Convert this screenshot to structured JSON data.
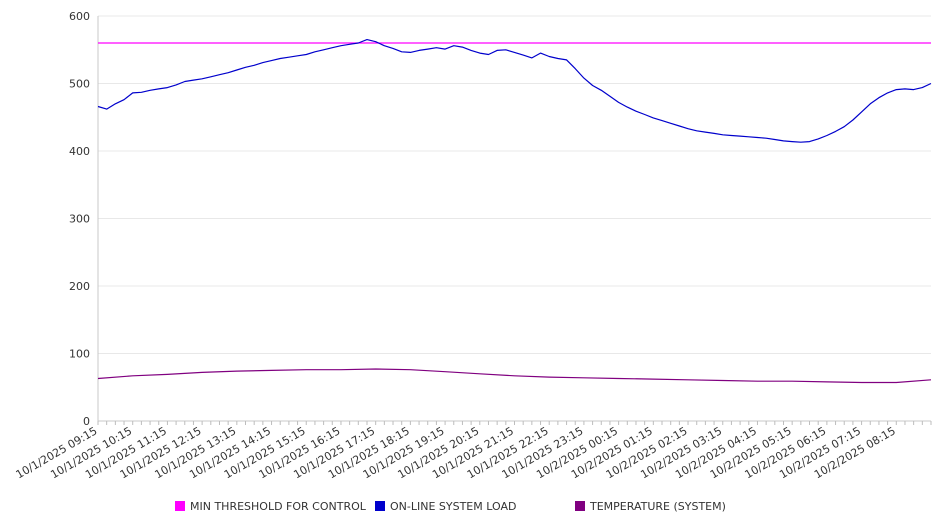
{
  "chart_data": {
    "type": "line",
    "ylim": [
      0,
      600
    ],
    "yticks": [
      0,
      100,
      200,
      300,
      400,
      500,
      600
    ],
    "grid": true,
    "legend_position": "bottom",
    "x_labels": [
      "10/1/2025 09:15",
      "10/1/2025 10:15",
      "10/1/2025 11:15",
      "10/1/2025 12:15",
      "10/1/2025 13:15",
      "10/1/2025 14:15",
      "10/1/2025 15:15",
      "10/1/2025 16:15",
      "10/1/2025 17:15",
      "10/1/2025 18:15",
      "10/1/2025 19:15",
      "10/1/2025 20:15",
      "10/1/2025 21:15",
      "10/1/2025 22:15",
      "10/1/2025 23:15",
      "10/2/2025 00:15",
      "10/2/2025 01:15",
      "10/2/2025 02:15",
      "10/2/2025 03:15",
      "10/2/2025 04:15",
      "10/2/2025 05:15",
      "10/2/2025 06:15",
      "10/2/2025 07:15",
      "10/2/2025 08:15"
    ],
    "x_start": "10/1/2025 09:15",
    "x_end": "10/2/2025 09:15",
    "series": [
      {
        "name": "MIN THRESHOLD FOR CONTROL",
        "color": "#ff00ff",
        "times": [
          "10/1/2025 09:15",
          "10/2/2025 09:15"
        ],
        "values": [
          560,
          560
        ]
      },
      {
        "name": "ON-LINE SYSTEM LOAD",
        "color": "#0000cc",
        "times": [
          "10/1/2025 09:15",
          "10/1/2025 09:30",
          "10/1/2025 09:45",
          "10/1/2025 10:00",
          "10/1/2025 10:15",
          "10/1/2025 10:30",
          "10/1/2025 10:45",
          "10/1/2025 11:00",
          "10/1/2025 11:15",
          "10/1/2025 11:30",
          "10/1/2025 11:45",
          "10/1/2025 12:00",
          "10/1/2025 12:15",
          "10/1/2025 12:30",
          "10/1/2025 12:45",
          "10/1/2025 13:00",
          "10/1/2025 13:15",
          "10/1/2025 13:30",
          "10/1/2025 13:45",
          "10/1/2025 14:00",
          "10/1/2025 14:15",
          "10/1/2025 14:30",
          "10/1/2025 14:45",
          "10/1/2025 15:00",
          "10/1/2025 15:15",
          "10/1/2025 15:30",
          "10/1/2025 15:45",
          "10/1/2025 16:00",
          "10/1/2025 16:15",
          "10/1/2025 16:30",
          "10/1/2025 16:45",
          "10/1/2025 17:00",
          "10/1/2025 17:15",
          "10/1/2025 17:30",
          "10/1/2025 17:45",
          "10/1/2025 18:00",
          "10/1/2025 18:15",
          "10/1/2025 18:30",
          "10/1/2025 18:45",
          "10/1/2025 19:00",
          "10/1/2025 19:15",
          "10/1/2025 19:30",
          "10/1/2025 19:45",
          "10/1/2025 20:00",
          "10/1/2025 20:15",
          "10/1/2025 20:30",
          "10/1/2025 20:45",
          "10/1/2025 21:00",
          "10/1/2025 21:15",
          "10/1/2025 21:30",
          "10/1/2025 21:45",
          "10/1/2025 22:00",
          "10/1/2025 22:15",
          "10/1/2025 22:30",
          "10/1/2025 22:45",
          "10/1/2025 23:00",
          "10/1/2025 23:15",
          "10/1/2025 23:30",
          "10/1/2025 23:45",
          "10/2/2025 00:00",
          "10/2/2025 00:15",
          "10/2/2025 00:30",
          "10/2/2025 00:45",
          "10/2/2025 01:00",
          "10/2/2025 01:15",
          "10/2/2025 01:30",
          "10/2/2025 01:45",
          "10/2/2025 02:00",
          "10/2/2025 02:15",
          "10/2/2025 02:30",
          "10/2/2025 02:45",
          "10/2/2025 03:00",
          "10/2/2025 03:15",
          "10/2/2025 03:30",
          "10/2/2025 03:45",
          "10/2/2025 04:00",
          "10/2/2025 04:15",
          "10/2/2025 04:30",
          "10/2/2025 04:45",
          "10/2/2025 05:00",
          "10/2/2025 05:15",
          "10/2/2025 05:30",
          "10/2/2025 05:45",
          "10/2/2025 06:00",
          "10/2/2025 06:15",
          "10/2/2025 06:30",
          "10/2/2025 06:45",
          "10/2/2025 07:00",
          "10/2/2025 07:15",
          "10/2/2025 07:30",
          "10/2/2025 07:45",
          "10/2/2025 08:00",
          "10/2/2025 08:15",
          "10/2/2025 08:30",
          "10/2/2025 08:45",
          "10/2/2025 09:00",
          "10/2/2025 09:15"
        ],
        "values": [
          466,
          462,
          470,
          476,
          486,
          487,
          490,
          492,
          494,
          498,
          503,
          505,
          507,
          510,
          513,
          516,
          520,
          524,
          527,
          531,
          534,
          537,
          539,
          541,
          543,
          547,
          550,
          553,
          556,
          558,
          560,
          565,
          562,
          556,
          552,
          547,
          546,
          549,
          551,
          553,
          551,
          556,
          554,
          549,
          545,
          543,
          549,
          550,
          546,
          542,
          538,
          545,
          540,
          537,
          535,
          522,
          508,
          497,
          490,
          481,
          472,
          465,
          459,
          454,
          449,
          445,
          441,
          437,
          433,
          430,
          428,
          426,
          424,
          423,
          422,
          421,
          420,
          419,
          417,
          415,
          414,
          413,
          414,
          418,
          423,
          429,
          436,
          446,
          458,
          470,
          479,
          486,
          491,
          492,
          491,
          494,
          500
        ]
      },
      {
        "name": "TEMPERATURE (SYSTEM)",
        "color": "#800080",
        "times": [
          "10/1/2025 09:15",
          "10/1/2025 10:15",
          "10/1/2025 11:15",
          "10/1/2025 12:15",
          "10/1/2025 13:15",
          "10/1/2025 14:15",
          "10/1/2025 15:15",
          "10/1/2025 16:15",
          "10/1/2025 17:15",
          "10/1/2025 18:15",
          "10/1/2025 19:15",
          "10/1/2025 20:15",
          "10/1/2025 21:15",
          "10/1/2025 22:15",
          "10/1/2025 23:15",
          "10/2/2025 00:15",
          "10/2/2025 01:15",
          "10/2/2025 02:15",
          "10/2/2025 03:15",
          "10/2/2025 04:15",
          "10/2/2025 05:15",
          "10/2/2025 06:15",
          "10/2/2025 07:15",
          "10/2/2025 08:15",
          "10/2/2025 09:15"
        ],
        "values": [
          63,
          67,
          69,
          72,
          74,
          75,
          76,
          76,
          77,
          76,
          73,
          70,
          67,
          65,
          64,
          63,
          62,
          61,
          60,
          59,
          59,
          58,
          57,
          57,
          61
        ]
      }
    ]
  }
}
